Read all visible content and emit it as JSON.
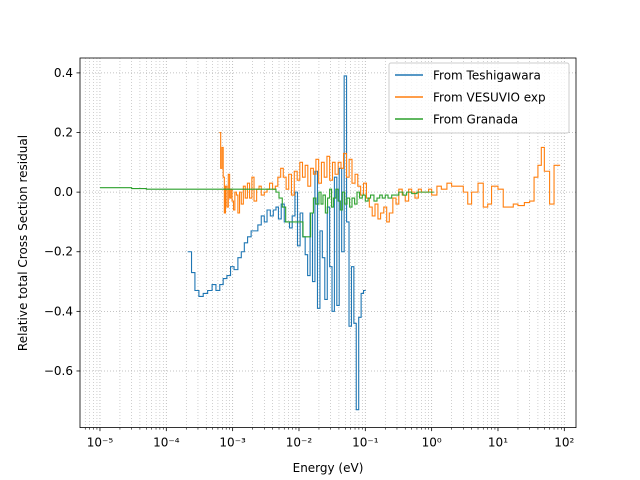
{
  "chart_data": {
    "type": "line",
    "title": "",
    "xlabel": "Energy (eV)",
    "ylabel": "Relative total Cross Section residual",
    "xscale": "log",
    "xlim": [
      5e-06,
      150
    ],
    "ylim": [
      -0.79,
      0.45
    ],
    "grid": true,
    "legend_position": "top-right",
    "x_ticks": [
      {
        "value": 1e-05,
        "label": "10⁻⁵"
      },
      {
        "value": 0.0001,
        "label": "10⁻⁴"
      },
      {
        "value": 0.001,
        "label": "10⁻³"
      },
      {
        "value": 0.01,
        "label": "10⁻²"
      },
      {
        "value": 0.1,
        "label": "10⁻¹"
      },
      {
        "value": 1,
        "label": "10⁰"
      },
      {
        "value": 10,
        "label": "10¹"
      },
      {
        "value": 100,
        "label": "10²"
      }
    ],
    "y_ticks": [
      {
        "value": 0.4,
        "label": "0.4"
      },
      {
        "value": 0.2,
        "label": "0.2"
      },
      {
        "value": 0.0,
        "label": "0.0"
      },
      {
        "value": -0.2,
        "label": "−0.2"
      },
      {
        "value": -0.4,
        "label": "−0.4"
      },
      {
        "value": -0.6,
        "label": "−0.6"
      }
    ],
    "series": [
      {
        "name": "From Teshigawara",
        "color": "#1f77b4",
        "x": [
          0.00021,
          0.00024,
          0.00027,
          0.00031,
          0.00036,
          0.00042,
          0.00049,
          0.00056,
          0.00064,
          0.00072,
          0.00082,
          0.00093,
          0.00105,
          0.0012,
          0.00135,
          0.0015,
          0.00168,
          0.0019,
          0.0021,
          0.0024,
          0.0027,
          0.003,
          0.0033,
          0.0037,
          0.0041,
          0.0045,
          0.0049,
          0.0054,
          0.006,
          0.0066,
          0.0072,
          0.0079,
          0.0087,
          0.0095,
          0.0104,
          0.0114,
          0.0124,
          0.0135,
          0.0147,
          0.016,
          0.0174,
          0.019,
          0.0207,
          0.0225,
          0.0245,
          0.0267,
          0.029,
          0.0315,
          0.0342,
          0.0372,
          0.0404,
          0.044,
          0.048,
          0.0522,
          0.0568,
          0.0618,
          0.0672,
          0.073,
          0.0795,
          0.0865,
          0.094
        ],
        "y": [
          -0.2,
          -0.27,
          -0.33,
          -0.35,
          -0.34,
          -0.33,
          -0.31,
          -0.33,
          -0.31,
          -0.29,
          -0.28,
          -0.25,
          -0.26,
          -0.22,
          -0.2,
          -0.17,
          -0.15,
          -0.13,
          -0.13,
          -0.11,
          -0.08,
          -0.1,
          -0.06,
          -0.08,
          -0.06,
          -0.05,
          -0.09,
          -0.04,
          -0.1,
          -0.1,
          -0.12,
          -0.08,
          0.0,
          -0.18,
          -0.07,
          -0.15,
          -0.21,
          -0.28,
          -0.07,
          -0.3,
          0.07,
          -0.39,
          -0.13,
          -0.22,
          -0.36,
          -0.05,
          -0.25,
          -0.4,
          0.05,
          -0.38,
          0.08,
          -0.2,
          0.39,
          -0.1,
          -0.45,
          -0.25,
          -0.44,
          -0.73,
          -0.42,
          -0.34,
          -0.33
        ]
      },
      {
        "name": "From VESUVIO exp",
        "color": "#ff7f0e",
        "x": [
          0.00063,
          0.00066,
          0.00069,
          0.00072,
          0.00075,
          0.00078,
          0.00082,
          0.00086,
          0.0009,
          0.00094,
          0.00098,
          0.00103,
          0.00108,
          0.00114,
          0.0012,
          0.00127,
          0.00135,
          0.00145,
          0.00155,
          0.00167,
          0.0018,
          0.00195,
          0.0021,
          0.0023,
          0.0025,
          0.0027,
          0.003,
          0.0033,
          0.0036,
          0.004,
          0.0044,
          0.0048,
          0.0053,
          0.0058,
          0.0064,
          0.007,
          0.0077,
          0.0085,
          0.0094,
          0.0103,
          0.0113,
          0.0124,
          0.0136,
          0.015,
          0.0165,
          0.018,
          0.0198,
          0.0218,
          0.024,
          0.0264,
          0.029,
          0.032,
          0.035,
          0.039,
          0.043,
          0.047,
          0.052,
          0.057,
          0.063,
          0.07,
          0.077,
          0.085,
          0.094,
          0.104,
          0.115,
          0.127,
          0.14,
          0.155,
          0.17,
          0.19,
          0.21,
          0.23,
          0.26,
          0.29,
          0.32,
          0.36,
          0.4,
          0.45,
          0.5,
          0.56,
          0.63,
          0.7,
          0.8,
          0.9,
          1.0,
          1.2,
          1.4,
          1.7,
          2.0,
          2.5,
          3.0,
          3.5,
          4.0,
          5.0,
          6.0,
          7.0,
          8.0,
          10.0,
          12.0,
          15.0,
          17.0,
          20.0,
          25.0,
          30.0,
          35.0,
          40.0,
          45.0,
          50.0,
          60.0,
          70.0,
          80.0
        ],
        "y": [
          0.2,
          0.08,
          0.15,
          0.05,
          -0.07,
          0.02,
          -0.05,
          0.06,
          -0.02,
          0.01,
          -0.03,
          -0.06,
          0.0,
          -0.01,
          -0.07,
          0.0,
          -0.04,
          0.02,
          -0.02,
          0.03,
          -0.02,
          0.05,
          -0.03,
          0.01,
          0.02,
          -0.01,
          0.0,
          0.01,
          0.03,
          0.01,
          0.02,
          0.05,
          0.08,
          0.05,
          0.01,
          0.06,
          -0.01,
          0.07,
          0.04,
          0.1,
          0.05,
          0.09,
          0.02,
          0.08,
          0.06,
          0.11,
          0.03,
          0.1,
          0.05,
          0.12,
          0.04,
          0.1,
          0.06,
          0.1,
          0.08,
          0.13,
          0.05,
          0.11,
          0.03,
          0.06,
          0.02,
          -0.01,
          0.03,
          -0.02,
          -0.05,
          -0.08,
          -0.04,
          -0.09,
          -0.07,
          -0.05,
          -0.1,
          -0.07,
          -0.02,
          -0.04,
          0.01,
          -0.01,
          -0.03,
          0.01,
          0.0,
          -0.02,
          0.01,
          0.0,
          0.0,
          0.01,
          -0.01,
          0.02,
          0.01,
          0.03,
          0.02,
          0.02,
          0.0,
          -0.04,
          0.0,
          0.03,
          -0.05,
          -0.04,
          0.02,
          0.01,
          -0.05,
          -0.05,
          -0.04,
          -0.045,
          -0.035,
          -0.03,
          0.05,
          0.09,
          0.15,
          0.07,
          -0.04,
          0.09,
          0.09
        ]
      },
      {
        "name": "From Granada",
        "color": "#2ca02c",
        "x": [
          1e-05,
          1.5e-05,
          2e-05,
          3e-05,
          5e-05,
          0.0001,
          0.0002,
          0.0004,
          0.0007,
          0.001,
          0.0015,
          0.002,
          0.003,
          0.004,
          0.0045,
          0.005,
          0.0056,
          0.0063,
          0.007,
          0.008,
          0.009,
          0.01,
          0.0115,
          0.013,
          0.015,
          0.0165,
          0.018,
          0.02,
          0.0215,
          0.023,
          0.025,
          0.027,
          0.029,
          0.031,
          0.033,
          0.036,
          0.039,
          0.042,
          0.045,
          0.049,
          0.053,
          0.058,
          0.063,
          0.069,
          0.075,
          0.082,
          0.09,
          0.1,
          0.11,
          0.12,
          0.135,
          0.15,
          0.165,
          0.18,
          0.2,
          0.22,
          0.25,
          0.28,
          0.32,
          0.37,
          0.42,
          0.5,
          0.6,
          0.75,
          0.9,
          1.0
        ],
        "y": [
          0.015,
          0.015,
          0.015,
          0.012,
          0.01,
          0.01,
          0.01,
          0.01,
          0.01,
          0.01,
          0.01,
          0.01,
          0.01,
          0.01,
          0.0,
          -0.02,
          -0.05,
          -0.1,
          -0.1,
          -0.1,
          -0.1,
          -0.1,
          -0.15,
          -0.15,
          -0.07,
          -0.02,
          -0.04,
          0.0,
          -0.04,
          -0.01,
          -0.07,
          -0.02,
          0.01,
          -0.05,
          -0.02,
          0.01,
          -0.03,
          -0.06,
          0.0,
          -0.04,
          -0.02,
          -0.05,
          -0.02,
          -0.04,
          0.0,
          -0.02,
          -0.01,
          -0.03,
          -0.02,
          -0.01,
          -0.03,
          -0.02,
          -0.01,
          -0.02,
          -0.01,
          -0.02,
          -0.01,
          -0.01,
          0.0,
          -0.01,
          0.0,
          -0.005,
          0.0,
          0.0,
          0.0,
          0.0
        ]
      }
    ]
  }
}
